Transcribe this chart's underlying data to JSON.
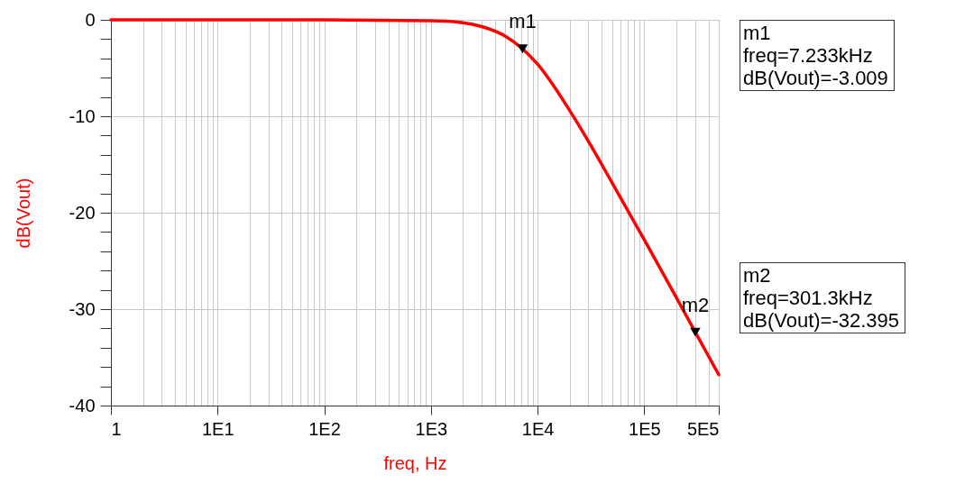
{
  "chart_data": {
    "type": "line",
    "xlabel": "freq, Hz",
    "ylabel": "dB(Vout)",
    "log": "x",
    "x": [
      1,
      10,
      100,
      1000,
      2000,
      3000,
      5000,
      7233,
      10000,
      20000,
      30000,
      50000,
      100000,
      200000,
      301300,
      500000
    ],
    "series": [
      {
        "color": "#ff0000",
        "values": [
          0,
          0,
          0,
          -0.1,
          -0.3,
          -0.7,
          -1.7,
          -3.009,
          -4.6,
          -9.4,
          -12.6,
          -16.9,
          -22.8,
          -28.8,
          -32.395,
          -36.8
        ]
      }
    ],
    "xlim": [
      1,
      500000
    ],
    "xticks": [
      1,
      {
        "value": 2,
        "label": null
      },
      {
        "value": 3,
        "label": null
      },
      {
        "value": 4,
        "label": null
      },
      {
        "value": 5,
        "label": null
      },
      {
        "value": 6,
        "label": null
      },
      {
        "value": 7,
        "label": null
      },
      {
        "value": 8,
        "label": null
      },
      {
        "value": 9,
        "label": null
      },
      {
        "value": 10,
        "label": "1E1"
      },
      {
        "value": 20,
        "label": null
      },
      {
        "value": 30,
        "label": null
      },
      {
        "value": 40,
        "label": null
      },
      {
        "value": 50,
        "label": null
      },
      {
        "value": 60,
        "label": null
      },
      {
        "value": 70,
        "label": null
      },
      {
        "value": 80,
        "label": null
      },
      {
        "value": 90,
        "label": null
      },
      {
        "value": 100,
        "label": "1E2"
      },
      {
        "value": 200,
        "label": null
      },
      {
        "value": 300,
        "label": null
      },
      {
        "value": 400,
        "label": null
      },
      {
        "value": 500,
        "label": null
      },
      {
        "value": 600,
        "label": null
      },
      {
        "value": 700,
        "label": null
      },
      {
        "value": 800,
        "label": null
      },
      {
        "value": 900,
        "label": null
      },
      {
        "value": 1000,
        "label": "1E3"
      },
      {
        "value": 2000,
        "label": null
      },
      {
        "value": 3000,
        "label": null
      },
      {
        "value": 4000,
        "label": null
      },
      {
        "value": 5000,
        "label": null
      },
      {
        "value": 6000,
        "label": null
      },
      {
        "value": 7000,
        "label": null
      },
      {
        "value": 8000,
        "label": null
      },
      {
        "value": 9000,
        "label": null
      },
      {
        "value": 10000,
        "label": "1E4"
      },
      {
        "value": 20000,
        "label": null
      },
      {
        "value": 30000,
        "label": null
      },
      {
        "value": 40000,
        "label": null
      },
      {
        "value": 50000,
        "label": null
      },
      {
        "value": 60000,
        "label": null
      },
      {
        "value": 70000,
        "label": null
      },
      {
        "value": 80000,
        "label": null
      },
      {
        "value": 90000,
        "label": null
      },
      {
        "value": 100000,
        "label": "1E5"
      },
      {
        "value": 200000,
        "label": null
      },
      {
        "value": 300000,
        "label": null
      },
      {
        "value": 400000,
        "label": null
      },
      {
        "value": 500000,
        "label": "5E5"
      }
    ],
    "ylim": [
      -40,
      0
    ],
    "yticks": [
      -40,
      {
        "value": -38,
        "label": null
      },
      {
        "value": -36,
        "label": null
      },
      {
        "value": -34,
        "label": null
      },
      {
        "value": -32,
        "label": null
      },
      -30,
      {
        "value": -28,
        "label": null
      },
      {
        "value": -26,
        "label": null
      },
      {
        "value": -24,
        "label": null
      },
      {
        "value": -22,
        "label": null
      },
      -20,
      {
        "value": -18,
        "label": null
      },
      {
        "value": -16,
        "label": null
      },
      {
        "value": -14,
        "label": null
      },
      {
        "value": -12,
        "label": null
      },
      -10,
      {
        "value": -8,
        "label": null
      },
      {
        "value": -6,
        "label": null
      },
      {
        "value": -4,
        "label": null
      },
      {
        "value": -2,
        "label": null
      },
      0
    ],
    "grid": true,
    "marker": "none",
    "line_style": "solid",
    "annotations": [
      {
        "text": "m1",
        "x": 7233,
        "y": -3.009
      },
      {
        "text": "m2",
        "x": 301300,
        "y": -32.395
      },
      "m1\nfreq=7.233kHz\ndB(Vout)=-3.009",
      "m2\nfreq=301.3kHz\ndB(Vout)=-32.395"
    ]
  }
}
